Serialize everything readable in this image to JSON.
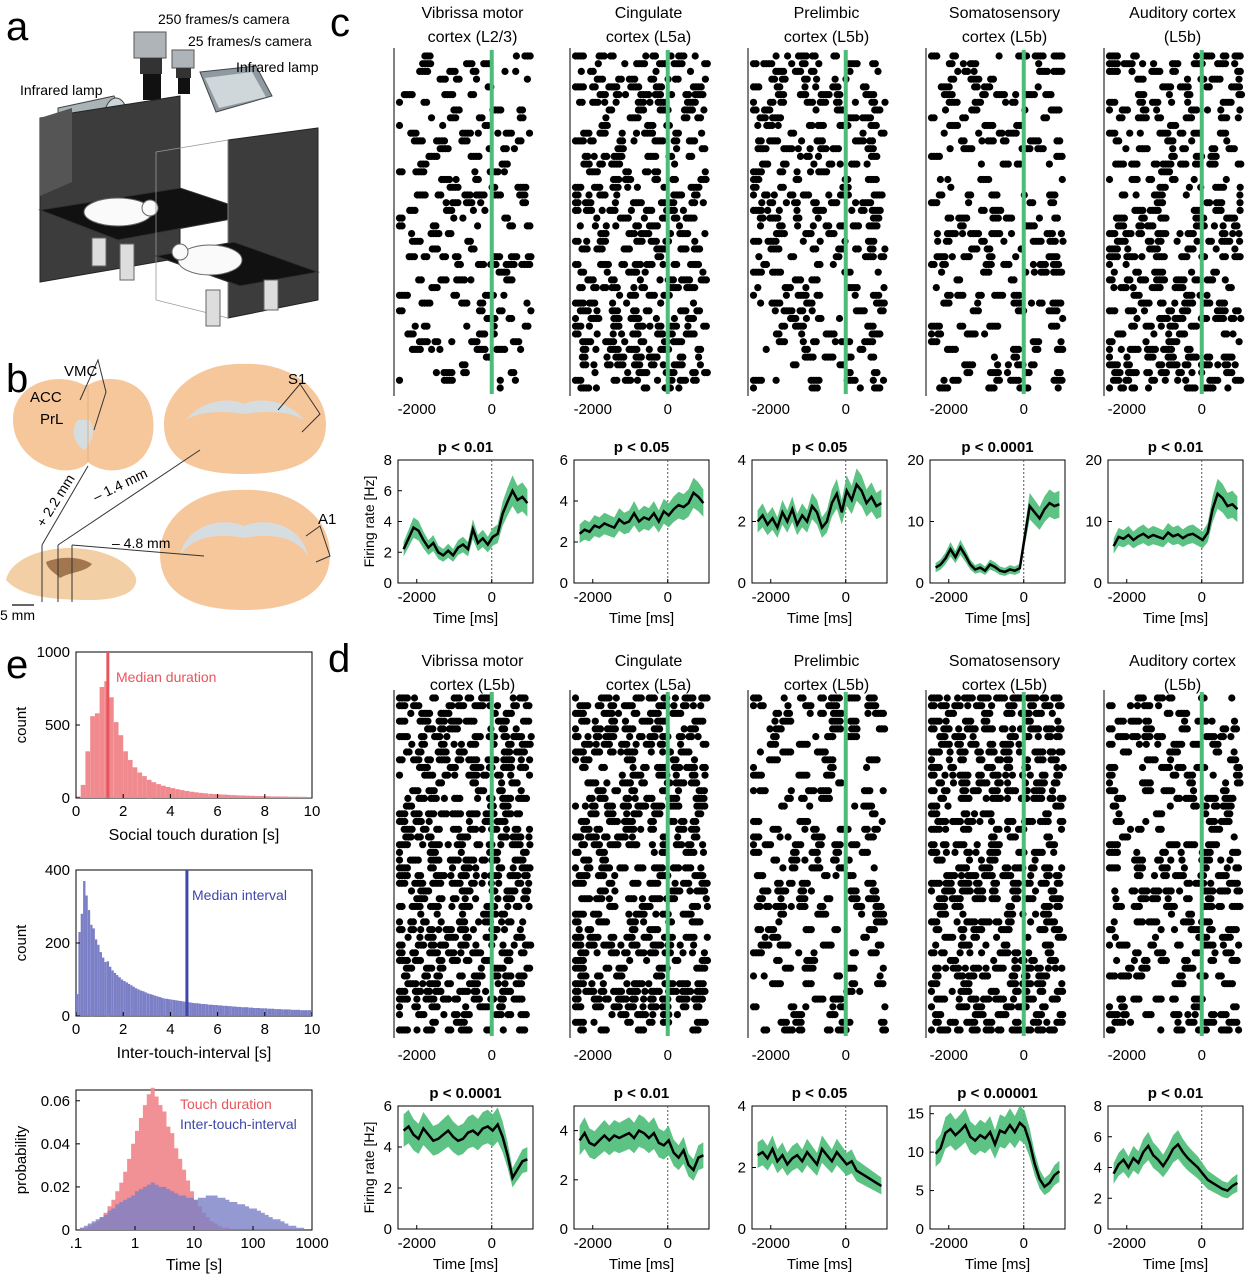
{
  "panels": {
    "a": "a",
    "b": "b",
    "c": "c",
    "d": "d",
    "e": "e"
  },
  "setup": {
    "camera_fast": "250 frames/s camera",
    "camera_slow": "25 frames/s camera",
    "lamp_left": "Infrared lamp",
    "lamp_right": "Infrared lamp"
  },
  "anatomy": {
    "vmc": "VMC",
    "acc": "ACC",
    "prl": "PrL",
    "s1": "S1",
    "a1": "A1",
    "coord_1": "+ 2.2 mm",
    "coord_2": "– 1.4 mm",
    "coord_3": "– 4.8 mm",
    "scale": "5 mm"
  },
  "colors": {
    "green": "#4bbd78",
    "red": "#e8555c",
    "red_fill": "#f08a8f",
    "blue": "#3f47a8",
    "blue_fill": "#7b7fc6",
    "brain": "#f6c79b",
    "brain_light": "#f3cfa6"
  },
  "chart_data": [
    {
      "type": "raster",
      "group": "c",
      "xlabel": "Time [ms]",
      "ylabel": "Firing rate [Hz]",
      "xticks": [
        -2000,
        0
      ],
      "panels": [
        {
          "title": [
            "Vibrissa motor",
            "cortex (L2/3)"
          ],
          "p": "p < 0.01",
          "ylim": [
            0,
            8
          ],
          "yticks": [
            0,
            2,
            4,
            6,
            8
          ],
          "rate": [
            2.2,
            2.9,
            3.6,
            3.4,
            2.8,
            2.3,
            2.6,
            2.0,
            1.8,
            2.1,
            1.8,
            2.3,
            2.5,
            2.2,
            3.5,
            2.6,
            2.9,
            2.5,
            3.0,
            3.2,
            4.5,
            5.3,
            6.0,
            5.4,
            5.6,
            5.2
          ],
          "density": 0.22
        },
        {
          "title": [
            "Cingulate",
            "cortex (L5a)"
          ],
          "p": "p < 0.05",
          "ylim": [
            0,
            6
          ],
          "yticks": [
            0,
            2,
            4,
            6
          ],
          "rate": [
            2.4,
            2.6,
            2.5,
            2.8,
            2.7,
            2.9,
            2.8,
            2.7,
            3.1,
            2.9,
            3.0,
            3.4,
            3.0,
            3.2,
            3.1,
            3.4,
            3.0,
            3.5,
            3.3,
            3.6,
            3.8,
            3.7,
            3.9,
            4.4,
            4.2,
            3.9
          ],
          "density": 0.42
        },
        {
          "title": [
            "Prelimbic",
            "cortex (L5b)"
          ],
          "p": "p < 0.05",
          "ylim": [
            0,
            4
          ],
          "yticks": [
            0,
            2,
            4
          ],
          "rate": [
            2.0,
            2.2,
            1.9,
            2.1,
            1.8,
            2.3,
            2.0,
            2.4,
            1.9,
            2.2,
            2.0,
            2.5,
            2.3,
            1.8,
            2.0,
            2.6,
            2.9,
            2.3,
            3.0,
            2.7,
            3.2,
            3.0,
            2.6,
            2.8,
            2.5,
            2.6
          ],
          "density": 0.3
        },
        {
          "title": [
            "Somatosensory",
            "cortex (L5b)"
          ],
          "p": "p < 0.0001",
          "ylim": [
            0,
            20
          ],
          "yticks": [
            0,
            10,
            20
          ],
          "rate": [
            2.5,
            3.0,
            4.0,
            5.5,
            4.2,
            5.8,
            4.5,
            3.0,
            2.2,
            2.5,
            2.0,
            3.0,
            2.6,
            2.0,
            1.8,
            2.2,
            2.0,
            2.4,
            7.5,
            12.5,
            11.5,
            10.5,
            12.0,
            13.0,
            12.5,
            12.8
          ],
          "density": 0.25
        },
        {
          "title": [
            "Auditory cortex",
            "(L5b)"
          ],
          "p": "p < 0.01",
          "ylim": [
            0,
            20
          ],
          "yticks": [
            0,
            10,
            20
          ],
          "rate": [
            6.0,
            7.5,
            7.2,
            7.8,
            7.0,
            7.6,
            8.0,
            7.4,
            7.8,
            7.5,
            7.2,
            8.2,
            7.6,
            7.9,
            7.3,
            7.8,
            8.0,
            7.5,
            7.0,
            8.2,
            12.0,
            14.5,
            13.8,
            12.5,
            12.8,
            12.0
          ],
          "density": 0.4
        }
      ]
    },
    {
      "type": "raster",
      "group": "d",
      "xlabel": "Time [ms]",
      "ylabel": "Firing rate [Hz]",
      "xticks": [
        -2000,
        0
      ],
      "panels": [
        {
          "title": [
            "Vibrissa motor",
            "cortex (L5b)"
          ],
          "p": "p < 0.0001",
          "ylim": [
            0,
            6
          ],
          "yticks": [
            0,
            2,
            4,
            6
          ],
          "rate": [
            4.8,
            5.0,
            4.6,
            4.4,
            4.9,
            4.6,
            4.3,
            4.4,
            4.6,
            4.8,
            4.5,
            4.3,
            4.4,
            4.7,
            4.8,
            4.6,
            4.9,
            5.0,
            4.8,
            5.1,
            4.5,
            3.6,
            2.5,
            2.9,
            3.3,
            3.4
          ],
          "density": 0.55
        },
        {
          "title": [
            "Cingulate",
            "cortex (L5a)"
          ],
          "p": "p < 0.01",
          "ylim": [
            0,
            5
          ],
          "yticks": [
            0,
            2,
            4
          ],
          "rate": [
            3.6,
            3.9,
            3.5,
            3.4,
            3.6,
            3.8,
            3.6,
            3.8,
            3.7,
            3.8,
            3.9,
            3.7,
            4.0,
            3.9,
            3.7,
            3.9,
            3.5,
            3.4,
            3.6,
            3.1,
            2.9,
            3.2,
            2.6,
            2.4,
            2.9,
            3.0
          ],
          "density": 0.5
        },
        {
          "title": [
            "Prelimbic",
            "cortex (L5b)"
          ],
          "p": "p < 0.05",
          "ylim": [
            0,
            4
          ],
          "yticks": [
            0,
            2,
            4
          ],
          "rate": [
            2.4,
            2.5,
            2.3,
            2.6,
            2.2,
            2.4,
            2.1,
            2.3,
            2.4,
            2.2,
            2.5,
            2.3,
            2.1,
            2.6,
            2.4,
            2.2,
            2.5,
            2.3,
            2.1,
            2.2,
            1.9,
            1.8,
            1.7,
            1.6,
            1.5,
            1.4
          ],
          "density": 0.25
        },
        {
          "title": [
            "Somatosensory",
            "cortex (L5b)"
          ],
          "p": "p < 0.00001",
          "ylim": [
            0,
            16
          ],
          "yticks": [
            0,
            5,
            10,
            15
          ],
          "rate": [
            9.8,
            10.5,
            12.5,
            13.0,
            12.2,
            12.8,
            13.5,
            12.0,
            11.5,
            12.2,
            11.8,
            12.6,
            11.0,
            12.8,
            12.5,
            13.5,
            12.6,
            13.8,
            13.2,
            11.2,
            8.5,
            6.5,
            5.5,
            6.0,
            7.0,
            7.5
          ],
          "density": 0.6
        },
        {
          "title": [
            "Auditory cortex",
            "(L5b)"
          ],
          "p": "p < 0.01",
          "ylim": [
            0,
            8
          ],
          "yticks": [
            0,
            2,
            4,
            6,
            8
          ],
          "rate": [
            3.6,
            4.2,
            4.5,
            4.0,
            4.6,
            4.3,
            5.0,
            5.4,
            4.8,
            4.5,
            4.1,
            4.6,
            5.2,
            5.5,
            5.0,
            4.6,
            4.3,
            4.0,
            3.6,
            3.2,
            3.0,
            2.8,
            2.6,
            2.5,
            2.8,
            3.0
          ],
          "density": 0.3
        }
      ]
    },
    {
      "type": "histogram",
      "group": "e1",
      "xlabel": "Social touch duration [s]",
      "ylabel": "count",
      "xlim": [
        0,
        10
      ],
      "ylim": [
        0,
        1000
      ],
      "xticks": [
        0,
        2,
        4,
        6,
        8,
        10
      ],
      "yticks": [
        0,
        500,
        1000
      ],
      "median": 1.35,
      "median_label": "Median duration",
      "bin_width": 0.2,
      "counts": [
        10,
        90,
        320,
        560,
        580,
        760,
        800,
        690,
        520,
        430,
        320,
        260,
        210,
        175,
        150,
        125,
        108,
        95,
        84,
        76,
        68,
        60,
        54,
        48,
        43,
        39,
        35,
        32,
        29,
        27,
        25,
        23,
        21,
        20,
        18,
        17,
        16,
        15,
        14,
        13,
        12,
        11,
        11,
        10,
        10,
        9,
        9,
        8,
        8,
        7
      ]
    },
    {
      "type": "histogram",
      "group": "e2",
      "xlabel": "Inter-touch-interval [s]",
      "ylabel": "count",
      "xlim": [
        0,
        10
      ],
      "ylim": [
        0,
        400
      ],
      "xticks": [
        0,
        2,
        4,
        6,
        8,
        10
      ],
      "yticks": [
        0,
        200,
        400
      ],
      "median": 4.7,
      "median_label": "Median interval",
      "bin_width": 0.1,
      "counts": [
        60,
        230,
        280,
        370,
        330,
        290,
        250,
        240,
        210,
        195,
        175,
        160,
        148,
        150,
        135,
        125,
        118,
        112,
        106,
        100,
        96,
        92,
        88,
        84,
        80,
        76,
        73,
        70,
        68,
        65,
        62,
        60,
        58,
        56,
        54,
        52,
        50,
        48,
        47,
        46,
        45,
        44,
        43,
        42,
        41,
        40,
        39,
        38,
        37,
        36,
        35,
        35,
        34,
        33,
        33,
        32,
        31,
        31,
        30,
        30,
        29,
        29,
        28,
        28,
        27,
        27,
        26,
        26,
        25,
        25,
        24,
        24,
        24,
        23,
        23,
        22,
        22,
        22,
        21,
        21,
        21,
        20,
        20,
        20,
        19,
        19,
        19,
        18,
        18,
        18,
        18,
        17,
        17,
        17,
        17,
        16,
        16,
        16,
        16,
        16
      ]
    },
    {
      "type": "histogram-log",
      "group": "e3",
      "xlabel": "Time [s]",
      "ylabel": "probability",
      "xlim": [
        0.1,
        1000
      ],
      "ylim": [
        0,
        0.065
      ],
      "xticks": [
        ".1",
        "1",
        "10",
        "100",
        "1000"
      ],
      "yticks": [
        "0",
        "0.02",
        "0.04",
        "0.06"
      ],
      "series": [
        {
          "name": "Touch duration",
          "color": "#f08a8f",
          "probs": [
            0,
            0.001,
            0.001,
            0.002,
            0.003,
            0.004,
            0.006,
            0.008,
            0.011,
            0.014,
            0.018,
            0.022,
            0.027,
            0.033,
            0.04,
            0.046,
            0.052,
            0.058,
            0.063,
            0.066,
            0.062,
            0.058,
            0.055,
            0.048,
            0.045,
            0.038,
            0.033,
            0.028,
            0.023,
            0.018,
            0.014,
            0.011,
            0.008,
            0.006,
            0.004,
            0.003,
            0.002,
            0.001,
            0.001,
            0,
            0,
            0,
            0,
            0,
            0,
            0,
            0,
            0,
            0,
            0,
            0,
            0,
            0,
            0,
            0,
            0,
            0,
            0,
            0,
            0
          ]
        },
        {
          "name": "Inter-touch-interval",
          "color": "#7b7fc6",
          "probs": [
            0,
            0.001,
            0.002,
            0.003,
            0.004,
            0.005,
            0.006,
            0.007,
            0.009,
            0.01,
            0.012,
            0.013,
            0.014,
            0.015,
            0.016,
            0.018,
            0.019,
            0.02,
            0.021,
            0.022,
            0.021,
            0.02,
            0.02,
            0.019,
            0.018,
            0.017,
            0.016,
            0.016,
            0.015,
            0.015,
            0.014,
            0.015,
            0.015,
            0.016,
            0.016,
            0.016,
            0.015,
            0.015,
            0.014,
            0.013,
            0.013,
            0.012,
            0.012,
            0.011,
            0.01,
            0.01,
            0.009,
            0.008,
            0.007,
            0.006,
            0.005,
            0.005,
            0.004,
            0.003,
            0.002,
            0.002,
            0.001,
            0.001,
            0,
            0
          ]
        }
      ]
    }
  ]
}
